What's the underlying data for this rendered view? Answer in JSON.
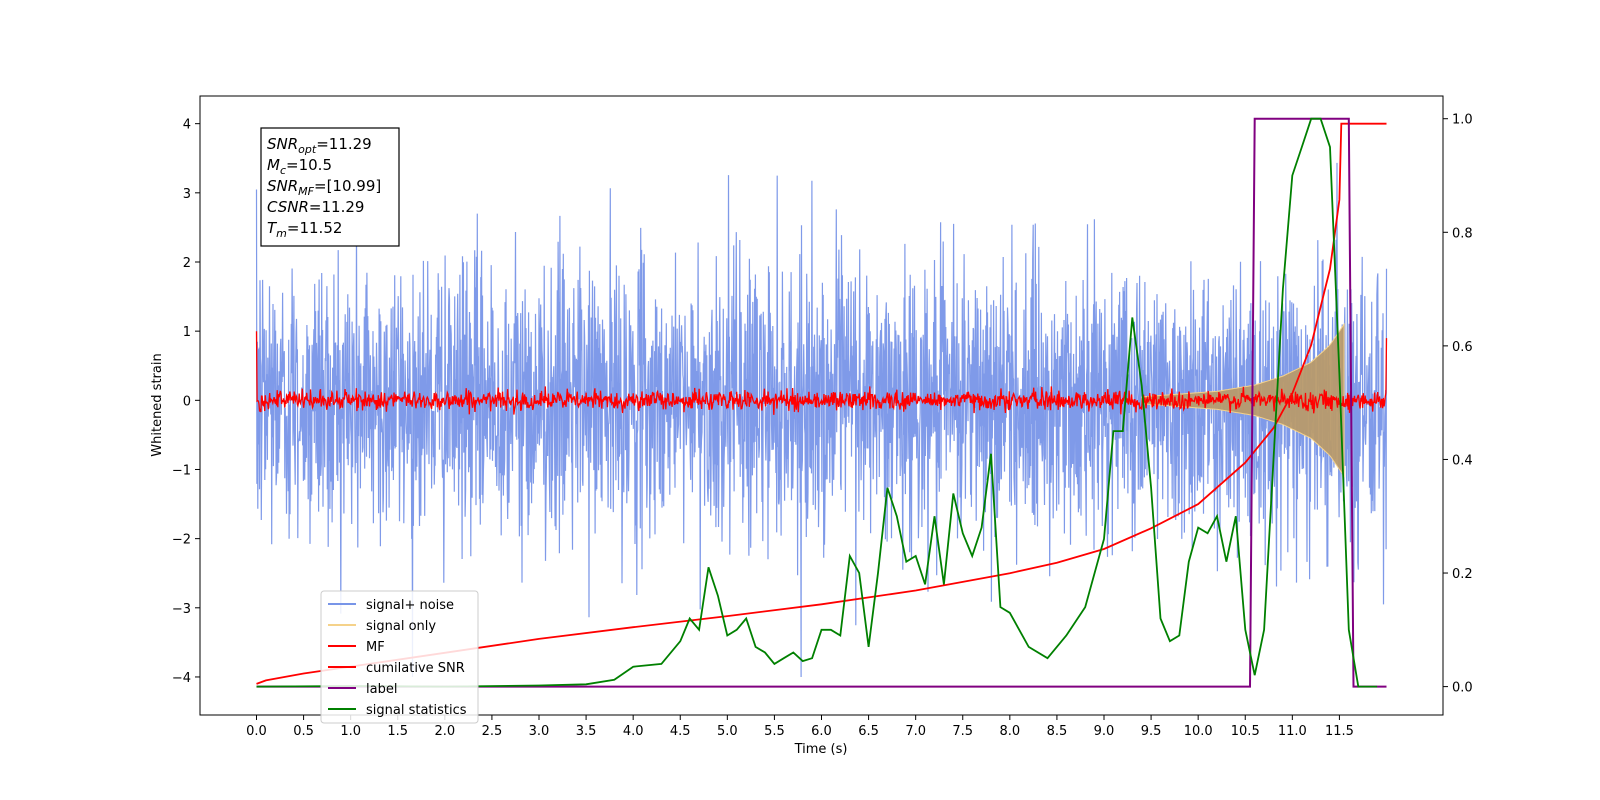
{
  "chart_data": {
    "type": "line",
    "xlabel": "Time (s)",
    "ylabel": "Whitened strain",
    "xlim": [
      -0.6,
      12.6
    ],
    "ylim": [
      -4.55,
      4.4
    ],
    "y2lim": [
      -0.05,
      1.04
    ],
    "x_ticks": [
      "0.0",
      "0.5",
      "1.0",
      "1.5",
      "2.0",
      "2.5",
      "3.0",
      "3.5",
      "4.0",
      "4.5",
      "5.0",
      "5.5",
      "6.0",
      "6.5",
      "7.0",
      "7.5",
      "8.0",
      "8.5",
      "9.0",
      "9.5",
      "10.0",
      "10.5",
      "11.0",
      "11.5"
    ],
    "y_ticks": [
      "−4",
      "−3",
      "−2",
      "−1",
      "0",
      "1",
      "2",
      "3",
      "4"
    ],
    "y2_ticks": [
      "0.0",
      "0.2",
      "0.4",
      "0.6",
      "0.8",
      "1.0"
    ],
    "grid": false,
    "legend_placement": "lower-left",
    "annotation": {
      "snr_opt": {
        "sym": "SNR",
        "sub": "opt",
        "val": "=11.29"
      },
      "mc": {
        "sym": "M",
        "sub": "c",
        "val": "=10.5"
      },
      "snr_mf": {
        "sym": "SNR",
        "sub": "MF",
        "val": "=[10.99]"
      },
      "csnr": {
        "sym": "CSNR",
        "sub": "",
        "val": "=11.29"
      },
      "tm": {
        "sym": "T",
        "sub": "m",
        "val": "=11.52"
      }
    },
    "series": [
      {
        "name": "signal+ noise",
        "axis": "left",
        "color": "#7895e8",
        "kind": "noise_band",
        "t_range": [
          0.0,
          12.0
        ],
        "sigma": 0.9,
        "envelope_max": 4.0
      },
      {
        "name": "signal only",
        "axis": "left",
        "color": "#f5d28a",
        "kind": "chirp_envelope",
        "x": [
          9.4,
          9.8,
          10.2,
          10.6,
          10.9,
          11.2,
          11.4,
          11.55
        ],
        "amplitude": [
          0.05,
          0.09,
          0.13,
          0.22,
          0.35,
          0.55,
          0.8,
          1.1
        ]
      },
      {
        "name": "MF",
        "axis": "left",
        "color": "#ff0000",
        "kind": "noise_band",
        "t_range": [
          0.0,
          12.0
        ],
        "sigma": 0.07,
        "envelope_max": 0.3,
        "start_value": 1.0,
        "end_value": 0.9
      },
      {
        "name": "cumilative SNR",
        "axis": "left",
        "color": "#ff0000",
        "x": [
          0.0,
          0.1,
          0.5,
          1.0,
          2.0,
          3.0,
          4.0,
          5.0,
          6.0,
          7.0,
          8.0,
          8.5,
          9.0,
          9.5,
          10.0,
          10.5,
          10.8,
          11.0,
          11.2,
          11.4,
          11.5,
          11.52,
          12.0
        ],
        "y": [
          -4.1,
          -4.05,
          -3.95,
          -3.85,
          -3.65,
          -3.45,
          -3.28,
          -3.12,
          -2.95,
          -2.75,
          -2.5,
          -2.35,
          -2.15,
          -1.85,
          -1.5,
          -0.9,
          -0.4,
          0.1,
          0.8,
          1.9,
          2.9,
          4.0,
          4.0
        ]
      },
      {
        "name": "label",
        "axis": "right",
        "color": "#800080",
        "x": [
          0.0,
          10.55,
          10.6,
          11.6,
          11.65,
          12.0
        ],
        "y": [
          0.0,
          0.0,
          1.0,
          1.0,
          0.0,
          0.0
        ]
      },
      {
        "name": "signal statistics",
        "axis": "right",
        "color": "#008000",
        "x": [
          0.0,
          1.0,
          2.0,
          3.0,
          3.5,
          3.8,
          4.0,
          4.3,
          4.5,
          4.6,
          4.7,
          4.8,
          4.9,
          5.0,
          5.1,
          5.2,
          5.3,
          5.4,
          5.5,
          5.6,
          5.7,
          5.8,
          5.9,
          6.0,
          6.1,
          6.2,
          6.3,
          6.4,
          6.5,
          6.6,
          6.7,
          6.8,
          6.9,
          7.0,
          7.1,
          7.2,
          7.3,
          7.4,
          7.5,
          7.6,
          7.7,
          7.8,
          7.9,
          8.0,
          8.2,
          8.4,
          8.6,
          8.8,
          9.0,
          9.1,
          9.2,
          9.3,
          9.4,
          9.5,
          9.6,
          9.7,
          9.8,
          9.9,
          10.0,
          10.1,
          10.2,
          10.3,
          10.4,
          10.5,
          10.6,
          10.7,
          10.8,
          10.9,
          11.0,
          11.1,
          11.2,
          11.3,
          11.4,
          11.5,
          11.6,
          11.7,
          11.8,
          11.9
        ],
        "y": [
          0.0,
          0.001,
          0.0,
          0.002,
          0.004,
          0.012,
          0.035,
          0.04,
          0.08,
          0.12,
          0.1,
          0.21,
          0.16,
          0.09,
          0.1,
          0.12,
          0.07,
          0.06,
          0.04,
          0.05,
          0.06,
          0.045,
          0.05,
          0.1,
          0.1,
          0.09,
          0.23,
          0.2,
          0.07,
          0.2,
          0.35,
          0.3,
          0.22,
          0.23,
          0.18,
          0.3,
          0.18,
          0.34,
          0.27,
          0.23,
          0.28,
          0.41,
          0.14,
          0.13,
          0.07,
          0.05,
          0.09,
          0.14,
          0.26,
          0.45,
          0.45,
          0.65,
          0.53,
          0.35,
          0.12,
          0.08,
          0.09,
          0.22,
          0.28,
          0.27,
          0.3,
          0.22,
          0.3,
          0.1,
          0.02,
          0.1,
          0.4,
          0.7,
          0.9,
          0.95,
          1.0,
          1.0,
          0.95,
          0.55,
          0.1,
          0.0,
          0.0,
          0.0
        ]
      }
    ]
  }
}
